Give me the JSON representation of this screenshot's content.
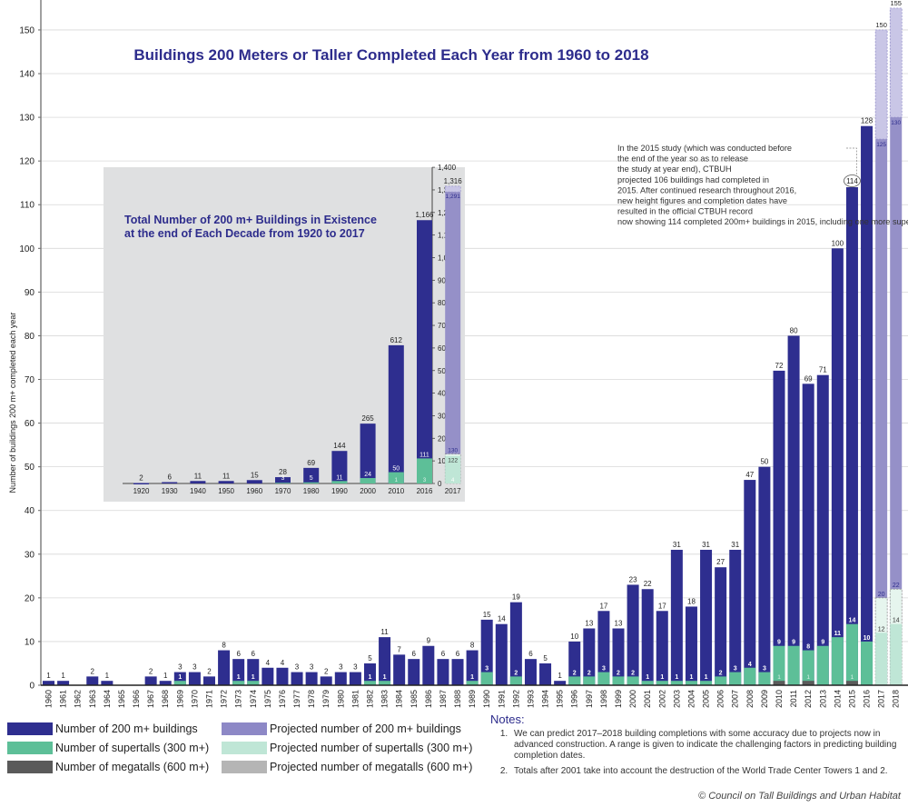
{
  "chart_data": [
    {
      "id": "annual",
      "type": "bar",
      "title": "Buildings 200 Meters or Taller Completed Each Year from 1960 to 2018",
      "xlabel": "",
      "ylabel": "Number of buildings 200 m+ completed each year",
      "ylim": [
        0,
        155
      ],
      "yticks": [
        0,
        10,
        20,
        30,
        40,
        50,
        60,
        70,
        80,
        90,
        100,
        110,
        120,
        130,
        140,
        150
      ],
      "grid": true,
      "categories": [
        "1960",
        "1961",
        "1962",
        "1963",
        "1964",
        "1965",
        "1966",
        "1967",
        "1968",
        "1969",
        "1970",
        "1971",
        "1972",
        "1973",
        "1974",
        "1975",
        "1976",
        "1977",
        "1978",
        "1979",
        "1980",
        "1981",
        "1982",
        "1983",
        "1984",
        "1985",
        "1986",
        "1987",
        "1988",
        "1989",
        "1990",
        "1991",
        "1992",
        "1993",
        "1994",
        "1995",
        "1996",
        "1997",
        "1998",
        "1999",
        "2000",
        "2001",
        "2002",
        "2003",
        "2004",
        "2005",
        "2006",
        "2007",
        "2008",
        "2009",
        "2010",
        "2011",
        "2012",
        "2013",
        "2014",
        "2015",
        "2016",
        "2017",
        "2018"
      ],
      "series": [
        {
          "name": "Number of 200 m+ buildings",
          "values": [
            1,
            1,
            0,
            2,
            1,
            0,
            0,
            2,
            1,
            3,
            3,
            2,
            8,
            6,
            6,
            4,
            4,
            3,
            3,
            2,
            3,
            3,
            5,
            11,
            7,
            6,
            9,
            6,
            6,
            8,
            15,
            14,
            19,
            6,
            5,
            1,
            10,
            13,
            17,
            13,
            23,
            22,
            17,
            31,
            18,
            31,
            27,
            31,
            47,
            50,
            72,
            80,
            69,
            71,
            100,
            114,
            128,
            null,
            null
          ]
        },
        {
          "name": "Number of supertalls (300 m+)",
          "values": [
            0,
            0,
            0,
            0,
            0,
            0,
            0,
            0,
            0,
            1,
            0,
            0,
            0,
            1,
            1,
            0,
            0,
            0,
            0,
            0,
            0,
            0,
            1,
            1,
            0,
            0,
            0,
            0,
            0,
            1,
            3,
            0,
            2,
            0,
            0,
            0,
            2,
            2,
            3,
            2,
            2,
            1,
            1,
            1,
            1,
            1,
            2,
            3,
            4,
            3,
            9,
            9,
            8,
            9,
            11,
            14,
            10,
            null,
            null
          ]
        },
        {
          "name": "Number of megatalls (600 m+)",
          "values": [
            0,
            0,
            0,
            0,
            0,
            0,
            0,
            0,
            0,
            0,
            0,
            0,
            0,
            0,
            0,
            0,
            0,
            0,
            0,
            0,
            0,
            0,
            0,
            0,
            0,
            0,
            0,
            0,
            0,
            0,
            0,
            0,
            0,
            0,
            0,
            0,
            0,
            0,
            0,
            0,
            0,
            0,
            0,
            0,
            0,
            0,
            0,
            0,
            0,
            0,
            1,
            0,
            1,
            0,
            0,
            1,
            0,
            null,
            null
          ]
        },
        {
          "name": "Projected number of 200 m+ buildings",
          "categories": [
            "2017",
            "2018"
          ],
          "low": [
            125,
            130
          ],
          "high": [
            150,
            155
          ]
        },
        {
          "name": "Projected number of supertalls (300 m+)",
          "categories": [
            "2017",
            "2018"
          ],
          "low": [
            12,
            14
          ],
          "high": [
            20,
            22
          ]
        },
        {
          "name": "Projected number of megatalls (600 m+)",
          "categories": [
            "2017",
            "2018"
          ],
          "low": [
            0,
            0
          ],
          "high": [
            0,
            0
          ]
        }
      ],
      "annotation": {
        "target": "2015",
        "text": "In the 2015 study (which was conducted before the end of the year so as to release the study at year end), CTBUH projected 106 buildings had completed in 2015. After continued research throughout 2016, new height figures and completion dates have resulted in the official CTBUH record now showing 114 completed 200m+ buildings in 2015, including one more supertall building."
      }
    },
    {
      "id": "cumulative",
      "type": "bar",
      "title": "Total Number of 200 m+ Buildings in Existence at the end of Each Decade from 1920 to 2017",
      "title_lines": [
        "Total Number of 200 m+ Buildings in Existence",
        "at the end of Each Decade from 1920 to 2017"
      ],
      "xlabel": "",
      "ylabel": "",
      "ylim": [
        0,
        1400
      ],
      "yticks": [
        "0",
        "100",
        "200",
        "300",
        "400",
        "500",
        "600",
        "700",
        "800",
        "900",
        "1,000",
        "1,100",
        "1,200",
        "1,300",
        "1,400"
      ],
      "ytick_values": [
        0,
        100,
        200,
        300,
        400,
        500,
        600,
        700,
        800,
        900,
        1000,
        1100,
        1200,
        1300,
        1400
      ],
      "grid": false,
      "categories": [
        "1920",
        "1930",
        "1940",
        "1950",
        "1960",
        "1970",
        "1980",
        "1990",
        "2000",
        "2010",
        "2016",
        "2017"
      ],
      "series": [
        {
          "name": "Total 200 m+ buildings",
          "values": [
            2,
            6,
            11,
            11,
            15,
            28,
            69,
            144,
            265,
            612,
            1166,
            null
          ]
        },
        {
          "name": "Supertalls (300 m+)",
          "values": [
            0,
            0,
            0,
            0,
            0,
            3,
            5,
            11,
            24,
            50,
            111,
            null
          ]
        },
        {
          "name": "Megatalls (600 m+)",
          "values": [
            0,
            0,
            0,
            0,
            0,
            0,
            0,
            0,
            0,
            1,
            3,
            null
          ]
        },
        {
          "name": "Projected total 200 m+ buildings",
          "categories": [
            "2017"
          ],
          "low": [
            1291
          ],
          "high": [
            1316
          ]
        },
        {
          "name": "Projected supertalls (300 m+)",
          "categories": [
            "2017"
          ],
          "low": [
            122
          ],
          "high": [
            130
          ]
        },
        {
          "name": "Projected megatalls (600 m+)",
          "categories": [
            "2017"
          ],
          "low": [
            4
          ],
          "high": [
            4
          ]
        }
      ],
      "labels": {
        "totals": [
          "2",
          "6",
          "11",
          "11",
          "15",
          "28",
          "69",
          "144",
          "265",
          "612",
          "1,166",
          "1,316"
        ],
        "projected_low_total": "1,291",
        "supertalls": [
          "",
          "",
          "",
          "",
          "",
          "3",
          "5",
          "11",
          "24",
          "50",
          "111",
          "130"
        ],
        "projected_low_supertall": "122",
        "megatalls": [
          "",
          "",
          "",
          "",
          "",
          "",
          "",
          "",
          "",
          "1",
          "3",
          "4"
        ]
      }
    }
  ],
  "colors": {
    "buildings": "#2e2e8f",
    "supertalls": "#5dbf98",
    "megatalls": "#5a5a5a",
    "proj_buildings": "#9590c8",
    "proj_buildings_range": "#c9c6e6",
    "proj_supertalls": "#bfe6d6",
    "proj_supertalls_range": "#e6f5ee",
    "proj_megatalls": "#b5b5b5",
    "title": "#2d2c8c",
    "inset_bg": "#dfe0e1",
    "grid": "#d8d8d8"
  },
  "legend": {
    "items": [
      {
        "label": "Number of 200 m+ buildings",
        "color": "#2e2e8f"
      },
      {
        "label": "Number of supertalls (300 m+)",
        "color": "#5dbf98"
      },
      {
        "label": "Number of megatalls (600 m+)",
        "color": "#5a5a5a"
      },
      {
        "label": "Projected number of 200 m+ buildings",
        "color": "#8d88c6"
      },
      {
        "label": "Projected number of supertalls (300 m+)",
        "color": "#bfe6d6"
      },
      {
        "label": "Projected number of megatalls (600 m+)",
        "color": "#b5b5b5"
      }
    ]
  },
  "notes": {
    "heading": "Notes:",
    "items": [
      "We can predict 2017–2018 building completions with some accuracy due to projects now in advanced construction. A range is given to indicate the challenging factors in predicting building completion dates.",
      "Totals after 2001 take into account the destruction of the World Trade Center Towers 1 and 2."
    ]
  },
  "copyright": "© Council on Tall Buildings and Urban Habitat"
}
